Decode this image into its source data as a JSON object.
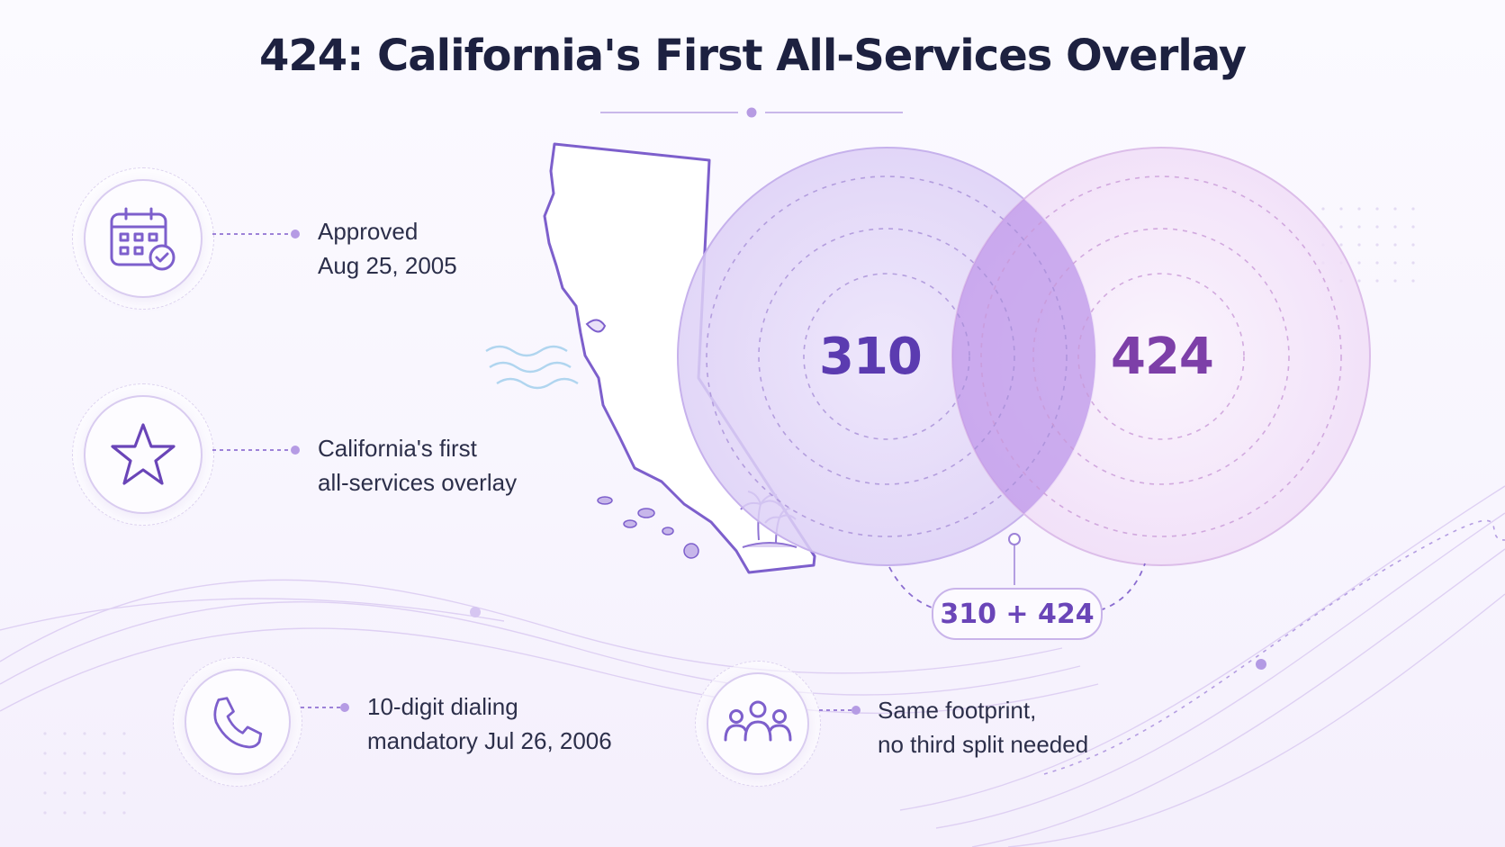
{
  "title": "424: California's First All-Services Overlay",
  "features": [
    {
      "icon": "calendar-check-icon",
      "lines": [
        "Approved",
        "Aug 25, 2005"
      ]
    },
    {
      "icon": "star-icon",
      "lines": [
        "California's first",
        "all-services overlay"
      ]
    },
    {
      "icon": "phone-icon",
      "lines": [
        "10-digit dialing",
        "mandatory Jul 26, 2006"
      ]
    },
    {
      "icon": "people-group-icon",
      "lines": [
        "Same footprint,",
        "no third split needed"
      ]
    }
  ],
  "venn": {
    "left_code": "310",
    "right_code": "424",
    "combined_label": "310 + 424"
  },
  "colors": {
    "title": "#1d2140",
    "accent_purple": "#6a45b8",
    "code_310": "#5b3bb0",
    "code_424": "#7d3fa8",
    "left_circle": "#d9cbf5",
    "right_circle": "#f1ddf7",
    "overlap": "#b98de8"
  }
}
